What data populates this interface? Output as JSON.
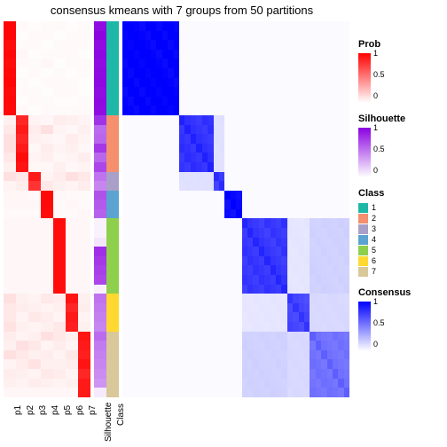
{
  "title": "consensus kmeans with 7 groups from 50 partitions",
  "n_rows": 40,
  "group_sizes": [
    10,
    6,
    2,
    3,
    8,
    4,
    7
  ],
  "p_labels": [
    "p1",
    "p2",
    "p3",
    "p4",
    "p5",
    "p6",
    "p7"
  ],
  "anno_labels": [
    "Silhouette",
    "Class"
  ],
  "colors": {
    "prob_low": "#ffffff",
    "prob_high": "#ff0000",
    "silhouette_low": "#ffffff",
    "silhouette_high": "#8a00e0",
    "consensus_low": "#ffffff",
    "consensus_high": "#0000ff",
    "class": [
      "#1fb8a6",
      "#f58f6e",
      "#a8a0c8",
      "#5ba3d0",
      "#8ed04b",
      "#ffd92f",
      "#d8c89a"
    ]
  },
  "silhouette": [
    0.95,
    0.98,
    0.95,
    0.97,
    0.95,
    0.96,
    0.97,
    0.95,
    0.96,
    0.95,
    0.8,
    0.58,
    0.6,
    0.78,
    0.6,
    0.72,
    0.55,
    0.48,
    0.68,
    0.65,
    0.62,
    0.05,
    0.05,
    0.1,
    0.82,
    0.78,
    0.75,
    0.72,
    0.05,
    0.55,
    0.52,
    0.5,
    0.48,
    0.58,
    0.52,
    0.5,
    0.48,
    0.45,
    0.42,
    0.08
  ],
  "p_columns_noise": [
    [
      0.02,
      0.02,
      0.05,
      0.03,
      0.05,
      0.03,
      0.02,
      0.04,
      0.03,
      0.04,
      0.1,
      0.15,
      0.2,
      0.2,
      0.15,
      0.1,
      0.2,
      0.08,
      0.06,
      0.05,
      0.04,
      0.05,
      0.05,
      0.05,
      0.05,
      0.05,
      0.05,
      0.05,
      0.05,
      0.2,
      0.15,
      0.15,
      0.18,
      0.12,
      0.1,
      0.2,
      0.08,
      0.12,
      0.1,
      0.05
    ],
    [
      0.04,
      0.02,
      0.03,
      0.05,
      0.04,
      0.02,
      0.03,
      0.04,
      0.02,
      0.04,
      0.15,
      0.1,
      0.15,
      0.1,
      0.05,
      0.08,
      0.15,
      0.12,
      0.05,
      0.06,
      0.04,
      0.05,
      0.05,
      0.05,
      0.05,
      0.05,
      0.05,
      0.05,
      0.05,
      0.1,
      0.12,
      0.08,
      0.1,
      0.08,
      0.2,
      0.15,
      0.12,
      0.1,
      0.08,
      0.05
    ],
    [
      0.02,
      0.04,
      0.04,
      0.02,
      0.03,
      0.04,
      0.02,
      0.03,
      0.04,
      0.02,
      0.08,
      0.12,
      0.1,
      0.05,
      0.08,
      0.06,
      0.1,
      0.2,
      0.04,
      0.05,
      0.04,
      0.05,
      0.05,
      0.05,
      0.05,
      0.05,
      0.05,
      0.05,
      0.05,
      0.08,
      0.1,
      0.15,
      0.08,
      0.1,
      0.15,
      0.1,
      0.18,
      0.08,
      0.12,
      0.05
    ],
    [
      0.03,
      0.04,
      0.02,
      0.03,
      0.05,
      0.02,
      0.04,
      0.02,
      0.03,
      0.04,
      0.05,
      0.2,
      0.08,
      0.12,
      0.1,
      0.05,
      0.08,
      0.15,
      0.03,
      0.04,
      0.05,
      0.05,
      0.05,
      0.05,
      0.05,
      0.05,
      0.05,
      0.05,
      0.05,
      0.15,
      0.08,
      0.12,
      0.1,
      0.2,
      0.08,
      0.12,
      0.1,
      0.15,
      0.1,
      0.05
    ],
    [
      0.04,
      0.02,
      0.03,
      0.04,
      0.02,
      0.03,
      0.04,
      0.04,
      0.02,
      0.03,
      0.12,
      0.08,
      0.05,
      0.08,
      0.06,
      0.1,
      0.12,
      0.1,
      0.05,
      0.03,
      0.04,
      0.05,
      0.05,
      0.05,
      0.05,
      0.05,
      0.05,
      0.05,
      0.05,
      0.12,
      0.1,
      0.08,
      0.15,
      0.15,
      0.12,
      0.08,
      0.1,
      0.12,
      0.08,
      0.05
    ],
    [
      0.02,
      0.03,
      0.04,
      0.04,
      0.03,
      0.02,
      0.03,
      0.04,
      0.02,
      0.03,
      0.1,
      0.05,
      0.12,
      0.1,
      0.08,
      0.05,
      0.2,
      0.08,
      0.04,
      0.05,
      0.03,
      0.05,
      0.05,
      0.05,
      0.05,
      0.05,
      0.05,
      0.05,
      0.05,
      0.08,
      0.15,
      0.1,
      0.12,
      0.1,
      0.08,
      0.15,
      0.12,
      0.08,
      0.1,
      0.05
    ],
    [
      0.03,
      0.04,
      0.04,
      0.02,
      0.04,
      0.03,
      0.02,
      0.02,
      0.03,
      0.04,
      0.08,
      0.1,
      0.08,
      0.05,
      0.12,
      0.08,
      0.15,
      0.12,
      0.03,
      0.04,
      0.05,
      0.05,
      0.05,
      0.05,
      0.05,
      0.05,
      0.05,
      0.05,
      0.05,
      0.1,
      0.12,
      0.08,
      0.1,
      0.08,
      0.1,
      0.12,
      0.08,
      0.15,
      0.1,
      0.1
    ]
  ],
  "consensus_blocks": [
    {
      "group_i": 0,
      "group_j": 0,
      "intensity": 1.0
    },
    {
      "group_i": 1,
      "group_j": 1,
      "intensity": 0.8
    },
    {
      "group_i": 2,
      "group_j": 2,
      "intensity": 0.75
    },
    {
      "group_i": 3,
      "group_j": 3,
      "intensity": 0.95
    },
    {
      "group_i": 4,
      "group_j": 4,
      "intensity": 0.78
    },
    {
      "group_i": 5,
      "group_j": 5,
      "intensity": 0.72
    },
    {
      "group_i": 6,
      "group_j": 6,
      "intensity": 0.55
    },
    {
      "group_i": 4,
      "group_j": 6,
      "intensity": 0.18
    },
    {
      "group_i": 6,
      "group_j": 4,
      "intensity": 0.18
    },
    {
      "group_i": 1,
      "group_j": 2,
      "intensity": 0.12
    },
    {
      "group_i": 2,
      "group_j": 1,
      "intensity": 0.12
    },
    {
      "group_i": 5,
      "group_j": 6,
      "intensity": 0.15
    },
    {
      "group_i": 6,
      "group_j": 5,
      "intensity": 0.15
    },
    {
      "group_i": 4,
      "group_j": 5,
      "intensity": 0.1
    },
    {
      "group_i": 5,
      "group_j": 4,
      "intensity": 0.1
    }
  ],
  "legends": {
    "prob": {
      "title": "Prob",
      "ticks": [
        "1",
        "0.5",
        "0"
      ]
    },
    "silhouette": {
      "title": "Silhouette",
      "ticks": [
        "1",
        "0.5",
        "0"
      ]
    },
    "class": {
      "title": "Class",
      "labels": [
        "1",
        "2",
        "3",
        "4",
        "5",
        "6",
        "7"
      ]
    },
    "consensus": {
      "title": "Consensus",
      "ticks": [
        "1",
        "0.5",
        "0"
      ]
    }
  },
  "typography": {
    "title_fontsize": 13,
    "label_fontsize": 10,
    "legend_title_fontsize": 11,
    "tick_fontsize": 9
  }
}
